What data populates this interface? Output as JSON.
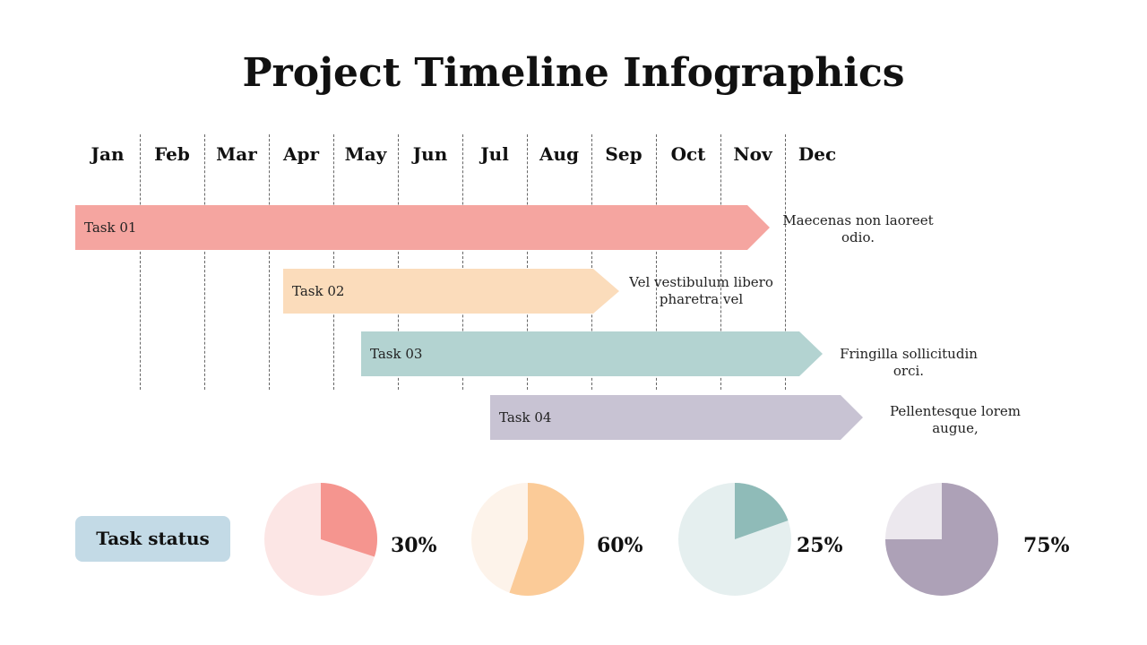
{
  "title": "Project Timeline Infographics",
  "months": [
    "Jan",
    "Feb",
    "Mar",
    "Apr",
    "May",
    "Jun",
    "Jul",
    "Aug",
    "Sep",
    "Oct",
    "Nov",
    "Dec"
  ],
  "tasks": [
    {
      "label": "Task 01",
      "start_month": "Jan",
      "end_month": "Nov",
      "note": "Maecenas non laoreet odio.",
      "color": "#f5a5a0"
    },
    {
      "label": "Task 02",
      "start_month": "Apr",
      "end_month": "Aug",
      "note": "Vel vestibulum libero pharetra vel",
      "color": "#fbdcbb"
    },
    {
      "label": "Task 03",
      "start_month": "May",
      "end_month": "Nov",
      "note": "Fringilla sollicitudin orci.",
      "color": "#b3d3d1"
    },
    {
      "label": "Task 04",
      "start_month": "Jul",
      "end_month": "Dec",
      "note": "Pellentesque lorem augue,",
      "color": "#c8c3d3"
    }
  ],
  "status": {
    "label": "Task status",
    "items": [
      {
        "percent": 30,
        "text": "30%",
        "color": "#f5958f",
        "bg": "#fce6e5"
      },
      {
        "percent": 60,
        "text": "60%",
        "color": "#fbcb98",
        "bg": "#fdf3ea"
      },
      {
        "percent": 25,
        "text": "25%",
        "color": "#8fbbb8",
        "bg": "#e5efef"
      },
      {
        "percent": 75,
        "text": "75%",
        "color": "#ada1b7",
        "bg": "#ece8ee"
      }
    ]
  }
}
